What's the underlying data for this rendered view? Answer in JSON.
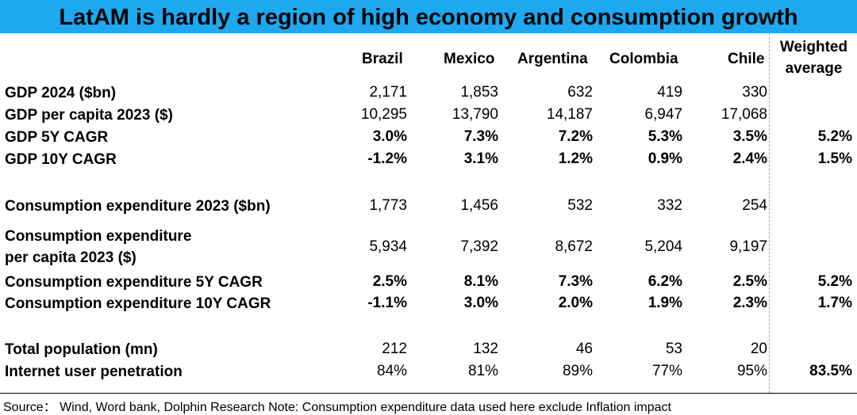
{
  "title": "LatAM is hardly a region of high economy and consumption growth",
  "columns": [
    "Brazil",
    "Mexico",
    "Argentina",
    "Colombia",
    "Chile"
  ],
  "weighted_header": [
    "Weighted",
    "average"
  ],
  "rows": [
    {
      "label": "GDP 2024 ($bn)",
      "values": [
        "2,171",
        "1,853",
        "632",
        "419",
        "330"
      ],
      "weighted": "",
      "bold": false
    },
    {
      "label": "GDP per capita 2023 ($)",
      "values": [
        "10,295",
        "13,790",
        "14,187",
        "6,947",
        "17,068"
      ],
      "weighted": "",
      "bold": false
    },
    {
      "label": "GDP 5Y CAGR",
      "values": [
        "3.0%",
        "7.3%",
        "7.2%",
        "5.3%",
        "3.5%"
      ],
      "weighted": "5.2%",
      "bold": true
    },
    {
      "label": "GDP 10Y CAGR",
      "values": [
        "-1.2%",
        "3.1%",
        "1.2%",
        "0.9%",
        "2.4%"
      ],
      "weighted": "1.5%",
      "bold": true
    },
    {
      "label": "Consumption expenditure 2023 ($bn)",
      "values": [
        "1,773",
        "1,456",
        "532",
        "332",
        "254"
      ],
      "weighted": "",
      "bold": false
    },
    {
      "label_lines": [
        "Consumption expenditure",
        "per capita 2023 ($)"
      ],
      "values": [
        "5,934",
        "7,392",
        "8,672",
        "5,204",
        "9,197"
      ],
      "weighted": "",
      "bold": false
    },
    {
      "label": "Consumption expenditure 5Y CAGR",
      "values": [
        "2.5%",
        "8.1%",
        "7.3%",
        "6.2%",
        "2.5%"
      ],
      "weighted": "5.2%",
      "bold": true
    },
    {
      "label": "Consumption expenditure 10Y CAGR",
      "values": [
        "-1.1%",
        "3.0%",
        "2.0%",
        "1.9%",
        "2.3%"
      ],
      "weighted": "1.7%",
      "bold": true
    },
    {
      "label": "Total population (mn)",
      "values": [
        "212",
        "132",
        "46",
        "53",
        "20"
      ],
      "weighted": "",
      "bold": false
    },
    {
      "label": "Internet user penetration",
      "values": [
        "84%",
        "81%",
        "89%",
        "77%",
        "95%"
      ],
      "weighted": "83.5%",
      "bold": false
    }
  ],
  "source": "Source：  Wind, Word bank, Dolphin Research Note: Consumption expenditure data used here exclude Inflation impact"
}
